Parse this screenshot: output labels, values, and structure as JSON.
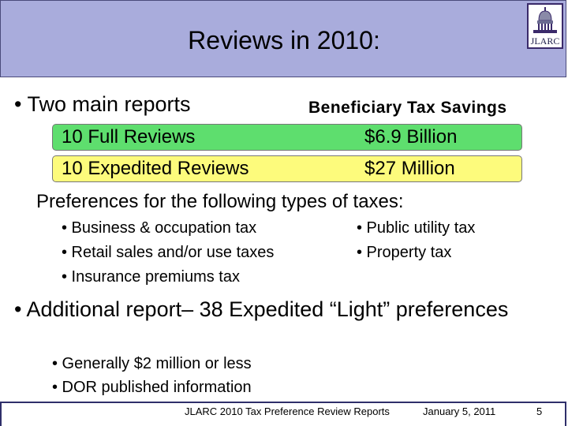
{
  "slide": {
    "title": "Reviews in 2010:",
    "logo_text": "JLARC",
    "bullet_reports": "• Two main reports",
    "column_header": "Beneficiary Tax Savings",
    "rows": [
      {
        "label": "10 Full Reviews",
        "value": "$6.9 Billion",
        "color": "#5ede6e"
      },
      {
        "label": "10 Expedited Reviews",
        "value": "$27  Million",
        "color": "#fdfb7c"
      }
    ],
    "preferences_heading": "Preferences for the following types of taxes:",
    "tax_types_left": [
      "• Business & occupation tax",
      "• Retail sales and/or use taxes",
      "• Insurance premiums tax"
    ],
    "tax_types_right": [
      "• Public utility tax",
      "• Property tax"
    ],
    "bullet_additional": "• Additional report– 38 Expedited “Light” preferences",
    "additional_sub": [
      "• Generally $2 million or less",
      "• DOR published information"
    ]
  },
  "footer": {
    "report_title": "JLARC 2010 Tax Preference Review Reports",
    "date": "January 5, 2011",
    "page_number": "5"
  },
  "colors": {
    "title_bar": "#a9acdc",
    "green_row": "#5ede6e",
    "yellow_row": "#fdfb7c"
  }
}
